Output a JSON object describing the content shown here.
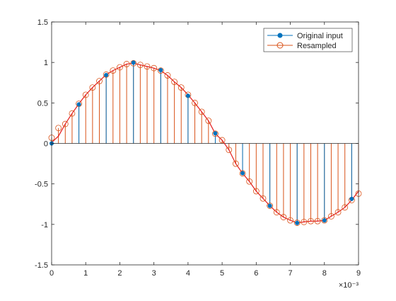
{
  "chart_data": {
    "type": "stem",
    "title": "",
    "xlabel": "",
    "ylabel": "",
    "x_exponent_label": "×10⁻³",
    "xlim": [
      0,
      9
    ],
    "ylim": [
      -1.5,
      1.5
    ],
    "x_ticks": [
      0,
      1,
      2,
      3,
      4,
      5,
      6,
      7,
      8,
      9
    ],
    "x_tick_labels": [
      "0",
      "1",
      "2",
      "3",
      "4",
      "5",
      "6",
      "7",
      "8",
      "9"
    ],
    "y_ticks": [
      -1.5,
      -1,
      -0.5,
      0,
      0.5,
      1,
      1.5
    ],
    "y_tick_labels": [
      "-1.5",
      "-1",
      "-0.5",
      "0",
      "0.5",
      "1",
      "1.5"
    ],
    "grid": false,
    "legend_position": "top-right",
    "series": [
      {
        "name": "Original input",
        "color": "#0072BD",
        "marker": "filled-circle",
        "x": [
          0,
          0.8,
          1.6,
          2.4,
          3.2,
          4.0,
          4.8,
          5.6,
          6.4,
          7.2,
          8.0,
          8.8
        ],
        "y": [
          0,
          0.482,
          0.844,
          0.998,
          0.905,
          0.588,
          0.125,
          -0.368,
          -0.771,
          -0.982,
          -0.951,
          -0.685
        ]
      },
      {
        "name": "Resampled",
        "color": "#D95319",
        "marker": "open-circle",
        "x": [
          0,
          0.2,
          0.4,
          0.6,
          0.8,
          1.0,
          1.2,
          1.4,
          1.6,
          1.8,
          2.0,
          2.2,
          2.4,
          2.6,
          2.8,
          3.0,
          3.2,
          3.4,
          3.6,
          3.8,
          4.0,
          4.2,
          4.4,
          4.6,
          4.8,
          5.0,
          5.2,
          5.4,
          5.6,
          5.8,
          6.0,
          6.2,
          6.4,
          6.6,
          6.8,
          7.0,
          7.2,
          7.4,
          7.6,
          7.8,
          8.0,
          8.2,
          8.4,
          8.6,
          8.8,
          9.0
        ],
        "y": [
          0.07,
          0.19,
          0.24,
          0.37,
          0.49,
          0.6,
          0.69,
          0.77,
          0.85,
          0.9,
          0.94,
          0.98,
          0.99,
          0.97,
          0.95,
          0.93,
          0.9,
          0.84,
          0.76,
          0.69,
          0.6,
          0.5,
          0.39,
          0.28,
          0.12,
          0.04,
          -0.08,
          -0.25,
          -0.37,
          -0.47,
          -0.59,
          -0.68,
          -0.77,
          -0.85,
          -0.91,
          -0.95,
          -0.98,
          -0.97,
          -0.96,
          -0.96,
          -0.95,
          -0.9,
          -0.85,
          -0.79,
          -0.7,
          -0.62
        ]
      }
    ],
    "interpolated_line": {
      "color": "#E41A1C",
      "x": [
        0,
        0.2,
        0.4,
        0.6,
        0.8,
        1.0,
        1.2,
        1.4,
        1.6,
        1.8,
        2.0,
        2.2,
        2.4,
        2.6,
        2.8,
        3.0,
        3.2,
        3.4,
        3.6,
        3.8,
        4.0,
        4.2,
        4.4,
        4.6,
        4.8,
        5.0,
        5.2,
        5.4,
        5.6,
        5.8,
        6.0,
        6.2,
        6.4,
        6.6,
        6.8,
        7.0,
        7.2,
        7.4,
        7.6,
        7.8,
        8.0,
        8.2,
        8.4,
        8.6,
        8.8,
        9.0
      ],
      "y": [
        0.01,
        0.09,
        0.24,
        0.37,
        0.49,
        0.6,
        0.69,
        0.77,
        0.85,
        0.9,
        0.94,
        0.98,
        0.99,
        0.97,
        0.95,
        0.93,
        0.9,
        0.84,
        0.76,
        0.69,
        0.6,
        0.5,
        0.39,
        0.28,
        0.12,
        0.04,
        -0.08,
        -0.25,
        -0.37,
        -0.47,
        -0.59,
        -0.68,
        -0.77,
        -0.85,
        -0.91,
        -0.95,
        -0.98,
        -0.97,
        -0.96,
        -0.96,
        -0.95,
        -0.9,
        -0.85,
        -0.79,
        -0.7,
        -0.59
      ]
    }
  }
}
